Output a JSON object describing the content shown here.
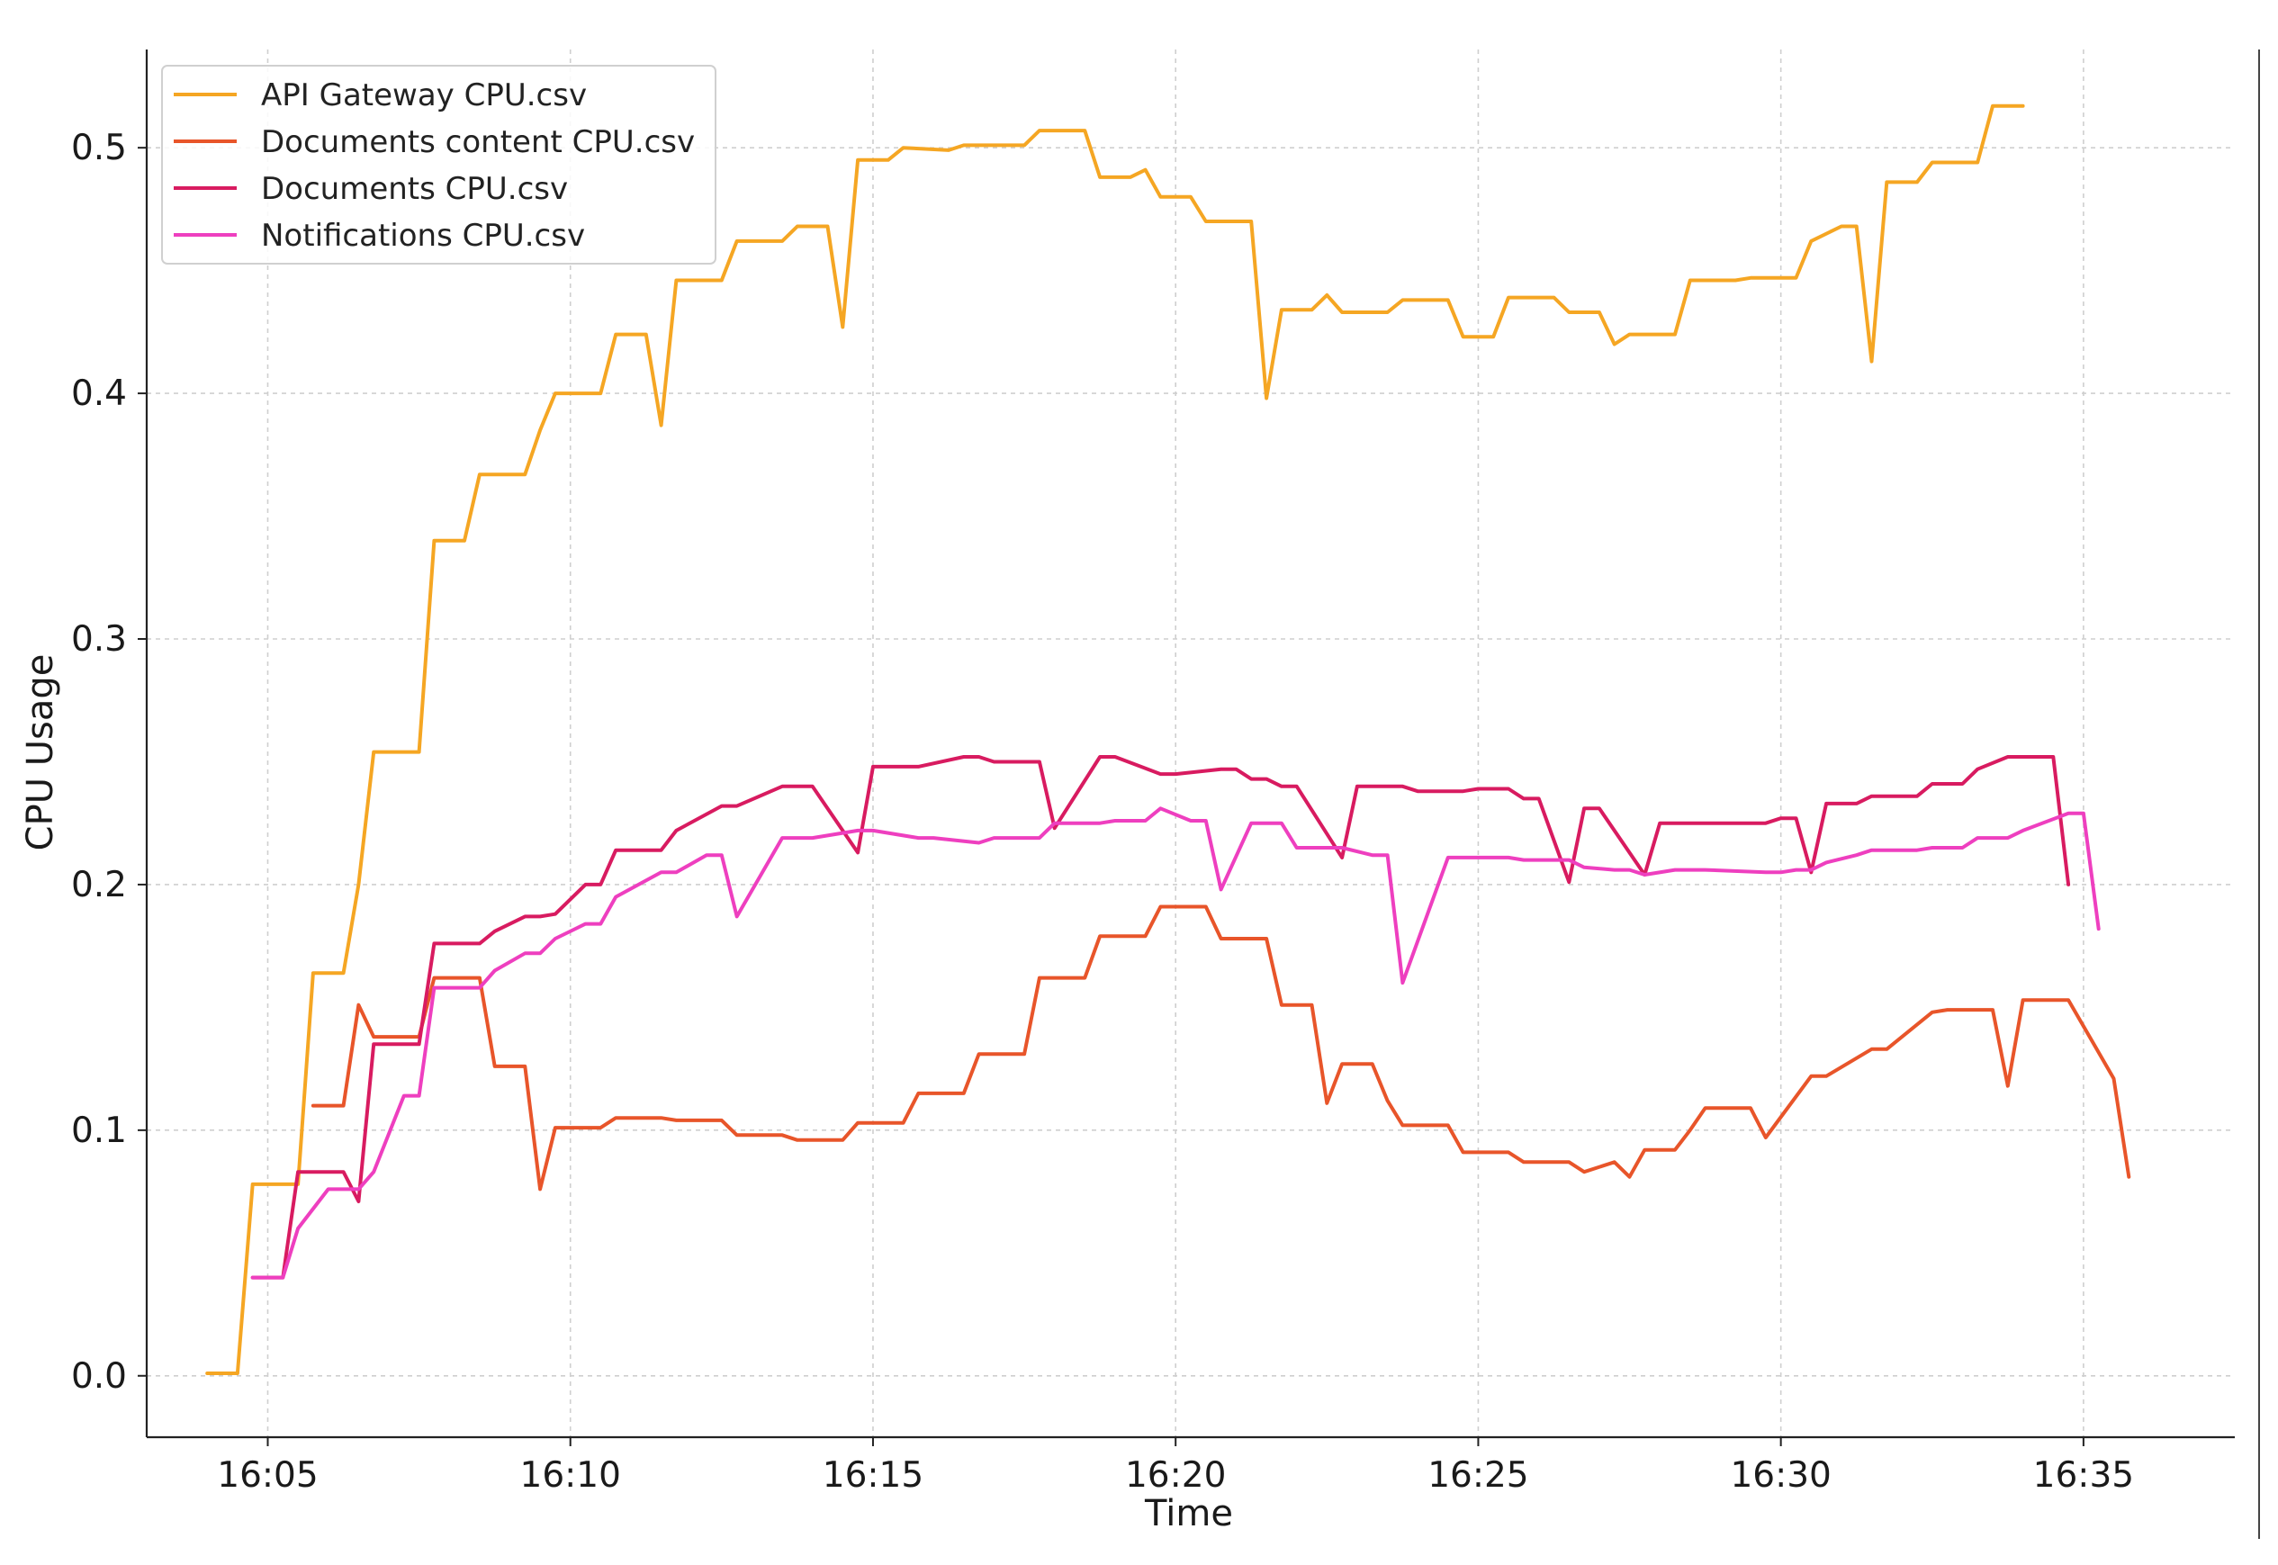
{
  "chart_data": {
    "type": "line",
    "title": "",
    "xlabel": "Time",
    "ylabel": "CPU Usage",
    "grid": true,
    "legend_placement": "top-left",
    "xlim": [
      "16:03:00",
      "16:37:30"
    ],
    "ylim": [
      -0.025,
      0.54
    ],
    "x_ticks": [
      "16:05",
      "16:10",
      "16:15",
      "16:20",
      "16:25",
      "16:30",
      "16:35"
    ],
    "y_ticks": [
      "0.0",
      "0.1",
      "0.2",
      "0.3",
      "0.4",
      "0.5"
    ],
    "series": [
      {
        "name": "API Gateway CPU.csv",
        "color": "#F5A623",
        "x": [
          "16:04:00",
          "16:04:30",
          "16:04:45",
          "16:05:15",
          "16:05:30",
          "16:05:45",
          "16:06:15",
          "16:06:30",
          "16:06:45",
          "16:07:30",
          "16:07:45",
          "16:08:15",
          "16:08:30",
          "16:09:15",
          "16:09:30",
          "16:09:45",
          "16:10:30",
          "16:10:45",
          "16:11:15",
          "16:11:30",
          "16:11:45",
          "16:12:30",
          "16:12:45",
          "16:13:30",
          "16:13:45",
          "16:14:15",
          "16:14:30",
          "16:14:45",
          "16:15:15",
          "16:15:30",
          "16:16:15",
          "16:16:30",
          "16:16:45",
          "16:17:30",
          "16:17:45",
          "16:18:30",
          "16:18:45",
          "16:19:15",
          "16:19:30",
          "16:19:45",
          "16:20:15",
          "16:20:30",
          "16:21:15",
          "16:21:30",
          "16:21:45",
          "16:22:15",
          "16:22:30",
          "16:22:45",
          "16:23:30",
          "16:23:45",
          "16:24:30",
          "16:24:45",
          "16:25:15",
          "16:25:30",
          "16:26:15",
          "16:26:30",
          "16:27:00",
          "16:27:15",
          "16:27:30",
          "16:28:15",
          "16:28:30",
          "16:29:15",
          "16:29:30",
          "16:30:15",
          "16:30:30",
          "16:31:00",
          "16:31:15",
          "16:31:30",
          "16:31:45",
          "16:32:15",
          "16:32:30",
          "16:33:15",
          "16:33:30",
          "16:34:00"
        ],
        "y": [
          0.001,
          0.001,
          0.078,
          0.078,
          0.078,
          0.164,
          0.164,
          0.2,
          0.254,
          0.254,
          0.34,
          0.34,
          0.367,
          0.367,
          0.385,
          0.4,
          0.4,
          0.424,
          0.424,
          0.387,
          0.446,
          0.446,
          0.462,
          0.462,
          0.468,
          0.468,
          0.427,
          0.495,
          0.495,
          0.5,
          0.499,
          0.501,
          0.501,
          0.501,
          0.507,
          0.507,
          0.488,
          0.488,
          0.491,
          0.48,
          0.48,
          0.47,
          0.47,
          0.398,
          0.434,
          0.434,
          0.44,
          0.433,
          0.433,
          0.438,
          0.438,
          0.423,
          0.423,
          0.439,
          0.439,
          0.433,
          0.433,
          0.42,
          0.424,
          0.424,
          0.446,
          0.446,
          0.447,
          0.447,
          0.462,
          0.468,
          0.468,
          0.413,
          0.486,
          0.486,
          0.494,
          0.494,
          0.517,
          0.517
        ]
      },
      {
        "name": "Documents content CPU.csv",
        "color": "#E8552A",
        "x": [
          "16:05:45",
          "16:06:15",
          "16:06:30",
          "16:06:45",
          "16:07:30",
          "16:07:45",
          "16:08:30",
          "16:08:45",
          "16:09:15",
          "16:09:30",
          "16:09:45",
          "16:10:30",
          "16:10:45",
          "16:11:30",
          "16:11:45",
          "16:12:30",
          "16:12:45",
          "16:13:30",
          "16:13:45",
          "16:14:30",
          "16:14:45",
          "16:15:30",
          "16:15:45",
          "16:16:30",
          "16:16:45",
          "16:17:30",
          "16:17:45",
          "16:18:30",
          "16:18:45",
          "16:19:30",
          "16:19:45",
          "16:20:30",
          "16:20:45",
          "16:21:30",
          "16:21:45",
          "16:22:15",
          "16:22:30",
          "16:22:45",
          "16:23:15",
          "16:23:30",
          "16:23:45",
          "16:24:30",
          "16:24:45",
          "16:25:30",
          "16:25:45",
          "16:26:30",
          "16:26:45",
          "16:27:15",
          "16:27:30",
          "16:27:45",
          "16:28:15",
          "16:28:30",
          "16:28:45",
          "16:29:30",
          "16:29:45",
          "16:30:30",
          "16:30:45",
          "16:31:30",
          "16:31:45",
          "16:32:30",
          "16:32:45",
          "16:33:30",
          "16:33:45",
          "16:34:00",
          "16:34:45",
          "16:35:30",
          "16:35:45"
        ],
        "y": [
          0.11,
          0.11,
          0.151,
          0.138,
          0.138,
          0.162,
          0.162,
          0.126,
          0.126,
          0.076,
          0.101,
          0.101,
          0.105,
          0.105,
          0.104,
          0.104,
          0.098,
          0.098,
          0.096,
          0.096,
          0.103,
          0.103,
          0.115,
          0.115,
          0.131,
          0.131,
          0.162,
          0.162,
          0.179,
          0.179,
          0.191,
          0.191,
          0.178,
          0.178,
          0.151,
          0.151,
          0.111,
          0.127,
          0.127,
          0.112,
          0.102,
          0.102,
          0.091,
          0.091,
          0.087,
          0.087,
          0.083,
          0.087,
          0.081,
          0.092,
          0.092,
          0.1,
          0.109,
          0.109,
          0.097,
          0.122,
          0.122,
          0.133,
          0.133,
          0.148,
          0.149,
          0.149,
          0.118,
          0.153,
          0.153,
          0.121,
          0.081
        ]
      },
      {
        "name": "Documents CPU.csv",
        "color": "#D81B60",
        "x": [
          "16:04:45",
          "16:05:15",
          "16:05:30",
          "16:06:15",
          "16:06:30",
          "16:06:45",
          "16:07:30",
          "16:07:45",
          "16:08:30",
          "16:08:45",
          "16:09:15",
          "16:09:30",
          "16:09:45",
          "16:10:15",
          "16:10:30",
          "16:10:45",
          "16:11:30",
          "16:11:45",
          "16:12:30",
          "16:12:45",
          "16:13:30",
          "16:13:45",
          "16:14:00",
          "16:14:45",
          "16:15:00",
          "16:15:45",
          "16:16:30",
          "16:16:45",
          "16:17:00",
          "16:17:45",
          "16:18:00",
          "16:18:45",
          "16:19:00",
          "16:19:45",
          "16:20:00",
          "16:20:45",
          "16:21:00",
          "16:21:15",
          "16:21:30",
          "16:21:45",
          "16:22:00",
          "16:22:45",
          "16:23:00",
          "16:23:45",
          "16:24:00",
          "16:24:45",
          "16:25:00",
          "16:25:30",
          "16:25:45",
          "16:26:00",
          "16:26:30",
          "16:26:45",
          "16:27:00",
          "16:27:45",
          "16:28:00",
          "16:28:45",
          "16:29:00",
          "16:29:45",
          "16:30:00",
          "16:30:15",
          "16:30:30",
          "16:30:45",
          "16:31:15",
          "16:31:30",
          "16:32:15",
          "16:32:30",
          "16:33:00",
          "16:33:15",
          "16:33:45",
          "16:34:00",
          "16:34:30",
          "16:34:45"
        ],
        "y": [
          0.04,
          0.04,
          0.083,
          0.083,
          0.071,
          0.135,
          0.135,
          0.176,
          0.176,
          0.181,
          0.187,
          0.187,
          0.188,
          0.2,
          0.2,
          0.214,
          0.214,
          0.222,
          0.232,
          0.232,
          0.24,
          0.24,
          0.24,
          0.213,
          0.248,
          0.248,
          0.252,
          0.252,
          0.25,
          0.25,
          0.223,
          0.252,
          0.252,
          0.245,
          0.245,
          0.247,
          0.247,
          0.243,
          0.243,
          0.24,
          0.24,
          0.211,
          0.24,
          0.24,
          0.238,
          0.238,
          0.239,
          0.239,
          0.235,
          0.235,
          0.201,
          0.231,
          0.231,
          0.204,
          0.225,
          0.225,
          0.225,
          0.225,
          0.227,
          0.227,
          0.205,
          0.233,
          0.233,
          0.236,
          0.236,
          0.241,
          0.241,
          0.247,
          0.252,
          0.252,
          0.252,
          0.2
        ]
      },
      {
        "name": "Notifications CPU.csv",
        "color": "#EE3FBF",
        "x": [
          "16:04:45",
          "16:05:15",
          "16:05:30",
          "16:06:00",
          "16:06:30",
          "16:06:45",
          "16:07:15",
          "16:07:30",
          "16:07:45",
          "16:08:30",
          "16:08:45",
          "16:09:15",
          "16:09:30",
          "16:09:45",
          "16:10:15",
          "16:10:30",
          "16:10:45",
          "16:11:30",
          "16:11:45",
          "16:12:15",
          "16:12:30",
          "16:12:45",
          "16:13:30",
          "16:13:45",
          "16:14:00",
          "16:14:45",
          "16:15:00",
          "16:15:45",
          "16:16:00",
          "16:16:45",
          "16:17:00",
          "16:17:45",
          "16:18:00",
          "16:18:45",
          "16:19:00",
          "16:19:30",
          "16:19:45",
          "16:20:15",
          "16:20:30",
          "16:20:45",
          "16:21:15",
          "16:21:45",
          "16:22:00",
          "16:22:45",
          "16:23:15",
          "16:23:30",
          "16:23:45",
          "16:24:30",
          "16:24:45",
          "16:25:30",
          "16:25:45",
          "16:26:30",
          "16:26:45",
          "16:27:15",
          "16:27:30",
          "16:27:45",
          "16:28:15",
          "16:28:30",
          "16:28:45",
          "16:29:45",
          "16:30:00",
          "16:30:15",
          "16:30:30",
          "16:30:45",
          "16:31:15",
          "16:31:30",
          "16:32:15",
          "16:32:30",
          "16:33:00",
          "16:33:15",
          "16:33:45",
          "16:34:00",
          "16:34:45",
          "16:35:00",
          "16:35:15"
        ],
        "y": [
          0.04,
          0.04,
          0.06,
          0.076,
          0.076,
          0.083,
          0.114,
          0.114,
          0.158,
          0.158,
          0.165,
          0.172,
          0.172,
          0.178,
          0.184,
          0.184,
          0.195,
          0.205,
          0.205,
          0.212,
          0.212,
          0.187,
          0.219,
          0.219,
          0.219,
          0.222,
          0.222,
          0.219,
          0.219,
          0.217,
          0.219,
          0.219,
          0.225,
          0.225,
          0.226,
          0.226,
          0.231,
          0.226,
          0.226,
          0.198,
          0.225,
          0.225,
          0.215,
          0.215,
          0.212,
          0.212,
          0.16,
          0.211,
          0.211,
          0.211,
          0.21,
          0.21,
          0.207,
          0.206,
          0.206,
          0.204,
          0.206,
          0.206,
          0.206,
          0.205,
          0.205,
          0.206,
          0.206,
          0.209,
          0.212,
          0.214,
          0.214,
          0.215,
          0.215,
          0.219,
          0.219,
          0.222,
          0.229,
          0.229,
          0.182
        ]
      }
    ]
  }
}
